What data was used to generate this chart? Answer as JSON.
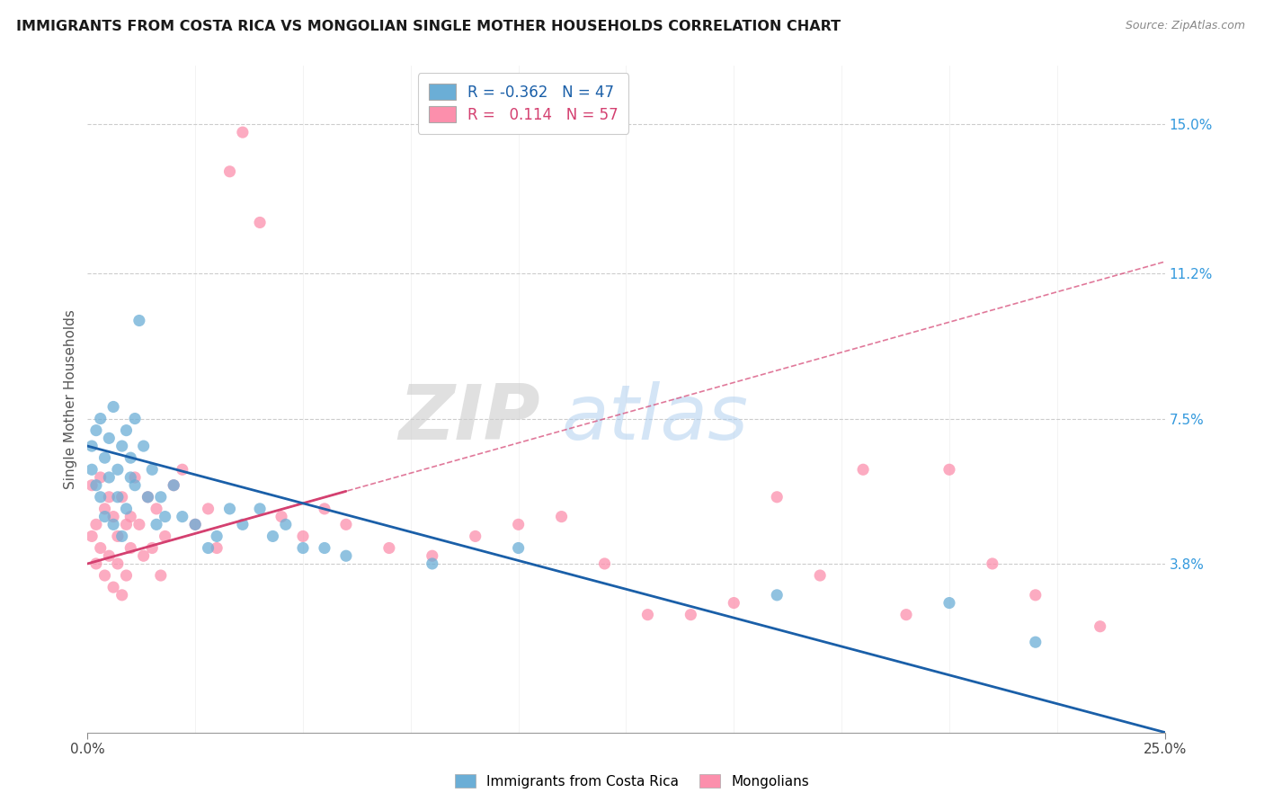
{
  "title": "IMMIGRANTS FROM COSTA RICA VS MONGOLIAN SINGLE MOTHER HOUSEHOLDS CORRELATION CHART",
  "source_text": "Source: ZipAtlas.com",
  "ylabel": "Single Mother Households",
  "xlabel_blue": "Immigrants from Costa Rica",
  "xlabel_pink": "Mongolians",
  "xlim": [
    0.0,
    0.25
  ],
  "ylim": [
    -0.005,
    0.165
  ],
  "ytick_labels_right": [
    "15.0%",
    "11.2%",
    "7.5%",
    "3.8%"
  ],
  "ytick_vals_right": [
    0.15,
    0.112,
    0.075,
    0.038
  ],
  "legend_blue_R": "-0.362",
  "legend_blue_N": "47",
  "legend_pink_R": "0.114",
  "legend_pink_N": "57",
  "blue_color": "#6baed6",
  "pink_color": "#fc8fac",
  "trendline_blue_color": "#1a5fa8",
  "trendline_pink_color": "#d44070",
  "grid_color": "#cccccc",
  "background_color": "#ffffff",
  "blue_scatter_x": [
    0.001,
    0.001,
    0.002,
    0.002,
    0.003,
    0.003,
    0.004,
    0.004,
    0.005,
    0.005,
    0.006,
    0.006,
    0.007,
    0.007,
    0.008,
    0.008,
    0.009,
    0.009,
    0.01,
    0.01,
    0.011,
    0.011,
    0.012,
    0.013,
    0.014,
    0.015,
    0.016,
    0.017,
    0.018,
    0.02,
    0.022,
    0.025,
    0.028,
    0.03,
    0.033,
    0.036,
    0.04,
    0.043,
    0.046,
    0.05,
    0.055,
    0.06,
    0.08,
    0.1,
    0.16,
    0.2,
    0.22
  ],
  "blue_scatter_y": [
    0.068,
    0.062,
    0.072,
    0.058,
    0.075,
    0.055,
    0.065,
    0.05,
    0.07,
    0.06,
    0.078,
    0.048,
    0.062,
    0.055,
    0.068,
    0.045,
    0.072,
    0.052,
    0.06,
    0.065,
    0.058,
    0.075,
    0.1,
    0.068,
    0.055,
    0.062,
    0.048,
    0.055,
    0.05,
    0.058,
    0.05,
    0.048,
    0.042,
    0.045,
    0.052,
    0.048,
    0.052,
    0.045,
    0.048,
    0.042,
    0.042,
    0.04,
    0.038,
    0.042,
    0.03,
    0.028,
    0.018
  ],
  "pink_scatter_x": [
    0.001,
    0.001,
    0.002,
    0.002,
    0.003,
    0.003,
    0.004,
    0.004,
    0.005,
    0.005,
    0.006,
    0.006,
    0.007,
    0.007,
    0.008,
    0.008,
    0.009,
    0.009,
    0.01,
    0.01,
    0.011,
    0.012,
    0.013,
    0.014,
    0.015,
    0.016,
    0.017,
    0.018,
    0.02,
    0.022,
    0.025,
    0.028,
    0.03,
    0.033,
    0.036,
    0.04,
    0.045,
    0.05,
    0.055,
    0.06,
    0.07,
    0.08,
    0.09,
    0.1,
    0.11,
    0.12,
    0.13,
    0.14,
    0.15,
    0.16,
    0.17,
    0.18,
    0.19,
    0.2,
    0.21,
    0.22,
    0.235
  ],
  "pink_scatter_y": [
    0.058,
    0.045,
    0.048,
    0.038,
    0.06,
    0.042,
    0.052,
    0.035,
    0.055,
    0.04,
    0.05,
    0.032,
    0.045,
    0.038,
    0.055,
    0.03,
    0.048,
    0.035,
    0.05,
    0.042,
    0.06,
    0.048,
    0.04,
    0.055,
    0.042,
    0.052,
    0.035,
    0.045,
    0.058,
    0.062,
    0.048,
    0.052,
    0.042,
    0.138,
    0.148,
    0.125,
    0.05,
    0.045,
    0.052,
    0.048,
    0.042,
    0.04,
    0.045,
    0.048,
    0.05,
    0.038,
    0.025,
    0.025,
    0.028,
    0.055,
    0.035,
    0.062,
    0.025,
    0.062,
    0.038,
    0.03,
    0.022
  ],
  "blue_trend_x0": 0.0,
  "blue_trend_x1": 0.25,
  "blue_trend_y0": 0.068,
  "blue_trend_y1": -0.005,
  "pink_trend_x0": 0.0,
  "pink_trend_x1": 0.25,
  "pink_trend_y0": 0.038,
  "pink_trend_y1": 0.115
}
